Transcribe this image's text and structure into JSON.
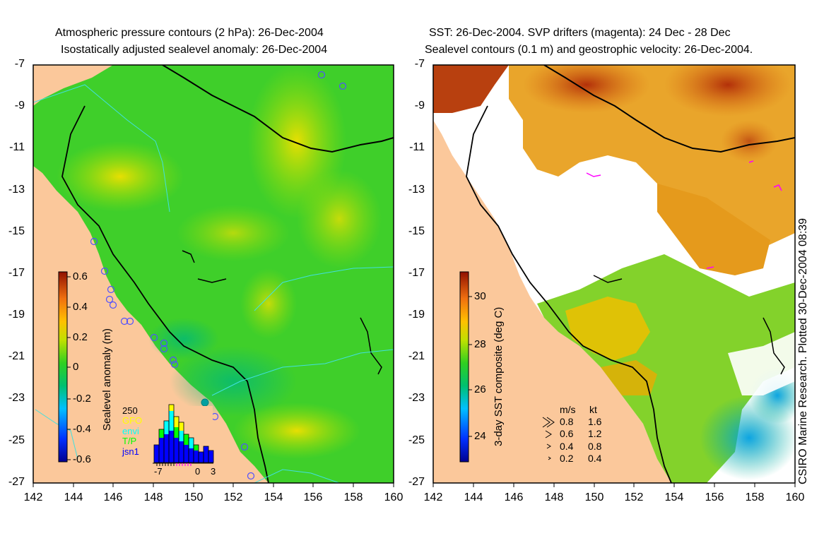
{
  "left_panel": {
    "title_line1": "Atmospheric pressure contours (2 hPa): 26-Dec-2004",
    "title_line2": "Isostatically adjusted sealevel anomaly: 26-Dec-2004",
    "colorbar_label": "Sealevel anomaly (m)",
    "colorbar_ticks": [
      "0.6",
      "0.4",
      "0.2",
      "0",
      "-0.2",
      "-0.4",
      "-0.6"
    ],
    "inset": {
      "count_label": "250",
      "legend": [
        {
          "label": "GFO",
          "color": "#ffff00"
        },
        {
          "label": "envi",
          "color": "#00ffff"
        },
        {
          "label": "T/P",
          "color": "#00ff00"
        },
        {
          "label": "jsn1",
          "color": "#0000ff"
        }
      ],
      "x_ticks": [
        "-7",
        "0",
        "3"
      ]
    }
  },
  "right_panel": {
    "title_line1": "SST: 26-Dec-2004. SVP drifters (magenta): 24 Dec - 28 Dec",
    "title_line2": "Sealevel contours (0.1 m) and geostrophic velocity: 26-Dec-2004.",
    "colorbar_label": "3-day SST composite (deg C)",
    "colorbar_ticks": [
      "30",
      "28",
      "26",
      "24"
    ],
    "vector_legend": {
      "header_ms": "m/s",
      "header_kt": "kt",
      "rows": [
        {
          "ms": "0.8",
          "kt": "1.6"
        },
        {
          "ms": "0.6",
          "kt": "1.2"
        },
        {
          "ms": "0.4",
          "kt": "0.8"
        },
        {
          "ms": "0.2",
          "kt": "0.4"
        }
      ]
    },
    "credit": "CSIRO Marine Research. Plotted 30-Dec-2004 08:39"
  },
  "axes": {
    "y_ticks": [
      "-7",
      "-9",
      "-11",
      "-13",
      "-15",
      "-17",
      "-19",
      "-21",
      "-23",
      "-25",
      "-27"
    ],
    "x_ticks": [
      "142",
      "144",
      "146",
      "148",
      "150",
      "152",
      "154",
      "156",
      "158",
      "160"
    ]
  },
  "colors": {
    "land": "#fbc89b",
    "sea_green": "#33cc33",
    "sst_orange": "#e89a20",
    "sst_red": "#b8400f",
    "drifter": "#ff00ff"
  }
}
